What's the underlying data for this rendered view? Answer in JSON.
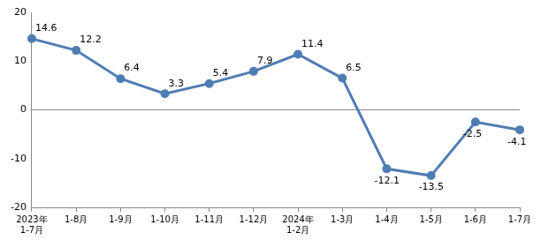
{
  "chart_data": {
    "type": "line",
    "categories": [
      "2023年\n1-7月",
      "1-8月",
      "1-9月",
      "1-10月",
      "1-11月",
      "1-12月",
      "2024年\n1-2月",
      "1-3月",
      "1-4月",
      "1-5月",
      "1-6月",
      "1-7月"
    ],
    "values": [
      14.6,
      12.2,
      6.4,
      3.3,
      5.4,
      7.9,
      11.4,
      6.5,
      -12.1,
      -13.5,
      -2.5,
      -4.1
    ],
    "color": "#4f7cb3",
    "ylim": [
      -20,
      20
    ],
    "yticks": [
      -20,
      -10,
      0,
      10,
      20
    ],
    "grid": false,
    "data_labels": true,
    "marker": "circle"
  }
}
